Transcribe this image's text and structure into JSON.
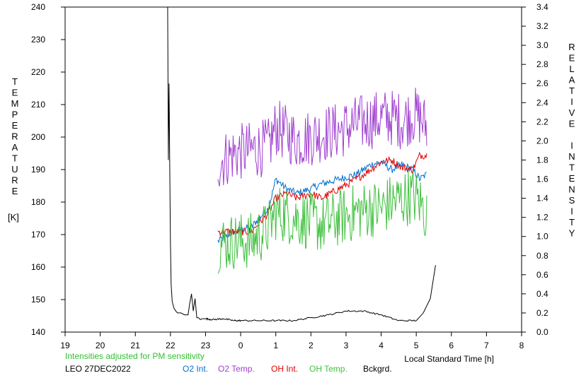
{
  "chart_data": {
    "type": "line",
    "left_axis_label": "TEMPERATURE",
    "left_axis_unit": "[K]",
    "right_axis_label": "RELATIVE INTENSITY",
    "xlabel": "Local Standard Time [h]",
    "x_tick_labels": [
      "19",
      "20",
      "21",
      "22",
      "23",
      "0",
      "1",
      "2",
      "3",
      "4",
      "5",
      "6",
      "7",
      "8"
    ],
    "left_ylim": [
      140,
      240
    ],
    "left_y_ticks": [
      "140",
      "150",
      "160",
      "170",
      "180",
      "190",
      "200",
      "210",
      "220",
      "230",
      "240"
    ],
    "right_ylim": [
      0.0,
      3.4
    ],
    "right_y_ticks": [
      "0.0",
      "0.2",
      "0.4",
      "0.6",
      "0.8",
      "1.0",
      "1.2",
      "1.4",
      "1.6",
      "1.8",
      "2.0",
      "2.2",
      "2.4",
      "2.6",
      "2.8",
      "3.0",
      "3.2",
      "3.4"
    ],
    "note": "Intensities adjusted for PM sensitivity",
    "station": "LEO 27DEC2022",
    "series": [
      {
        "name": "O2 Int.",
        "color": "#0070d0",
        "axis": "right",
        "x": [
          23.35,
          23.8,
          24.3,
          24.8,
          25.0,
          25.3,
          25.6,
          26.0,
          26.3,
          26.8,
          27.3,
          27.7,
          28.0,
          28.3,
          28.6,
          28.9,
          29.1,
          29.3
        ],
        "y": [
          0.95,
          1.05,
          1.1,
          1.3,
          1.6,
          1.5,
          1.45,
          1.5,
          1.55,
          1.6,
          1.65,
          1.75,
          1.78,
          1.7,
          1.75,
          1.7,
          1.6,
          1.65
        ]
      },
      {
        "name": "O2 Temp.",
        "color": "#a040d0",
        "axis": "left",
        "x": [
          23.35,
          23.8,
          24.3,
          24.8,
          25.0,
          25.3,
          25.6,
          26.0,
          26.3,
          26.8,
          27.3,
          27.7,
          28.0,
          28.3,
          28.6,
          28.9,
          29.1,
          29.3
        ],
        "y": [
          192,
          195,
          196,
          197,
          203,
          201,
          199,
          200,
          201,
          202,
          204,
          205,
          206,
          206,
          205,
          207,
          206,
          203
        ]
      },
      {
        "name": "OH Int.",
        "color": "#e00000",
        "axis": "right",
        "x": [
          23.35,
          23.8,
          24.3,
          24.8,
          25.0,
          25.3,
          25.6,
          26.0,
          26.3,
          26.8,
          27.3,
          27.7,
          28.0,
          28.3,
          28.6,
          28.9,
          29.1,
          29.3
        ],
        "y": [
          1.05,
          1.05,
          1.05,
          1.25,
          1.4,
          1.45,
          1.4,
          1.45,
          1.4,
          1.5,
          1.6,
          1.7,
          1.78,
          1.8,
          1.72,
          1.7,
          1.85,
          1.85
        ]
      },
      {
        "name": "OH Temp.",
        "color": "#40c040",
        "axis": "left",
        "x": [
          23.35,
          23.8,
          24.3,
          24.8,
          25.0,
          25.3,
          25.6,
          26.0,
          26.3,
          26.8,
          27.3,
          27.7,
          28.0,
          28.3,
          28.6,
          28.9,
          29.1,
          29.3
        ],
        "y": [
          167,
          168,
          168,
          172,
          177,
          176,
          175,
          174,
          173,
          175,
          177,
          178,
          178,
          180,
          181,
          182,
          180,
          176
        ]
      },
      {
        "name": "Bckgrd.",
        "color": "#000000",
        "axis": "right",
        "x": [
          21.92,
          21.94,
          21.96,
          21.98,
          22.0,
          22.02,
          22.05,
          22.1,
          22.15,
          22.2,
          22.3,
          22.4,
          22.5,
          22.55,
          22.6,
          22.65,
          22.7,
          22.75,
          22.8,
          22.85,
          22.9,
          23.0,
          23.2,
          23.5,
          23.8,
          24.0,
          24.5,
          25.0,
          25.5,
          26.0,
          26.5,
          27.0,
          27.5,
          28.0,
          28.5,
          29.0,
          29.2,
          29.4,
          29.55
        ],
        "y": [
          3.4,
          1.8,
          2.6,
          1.7,
          0.95,
          0.5,
          0.32,
          0.25,
          0.22,
          0.2,
          0.2,
          0.18,
          0.18,
          0.3,
          0.4,
          0.22,
          0.35,
          0.15,
          0.15,
          0.13,
          0.14,
          0.14,
          0.13,
          0.14,
          0.12,
          0.12,
          0.12,
          0.12,
          0.12,
          0.15,
          0.18,
          0.22,
          0.22,
          0.18,
          0.12,
          0.12,
          0.2,
          0.35,
          0.7
        ]
      }
    ]
  }
}
